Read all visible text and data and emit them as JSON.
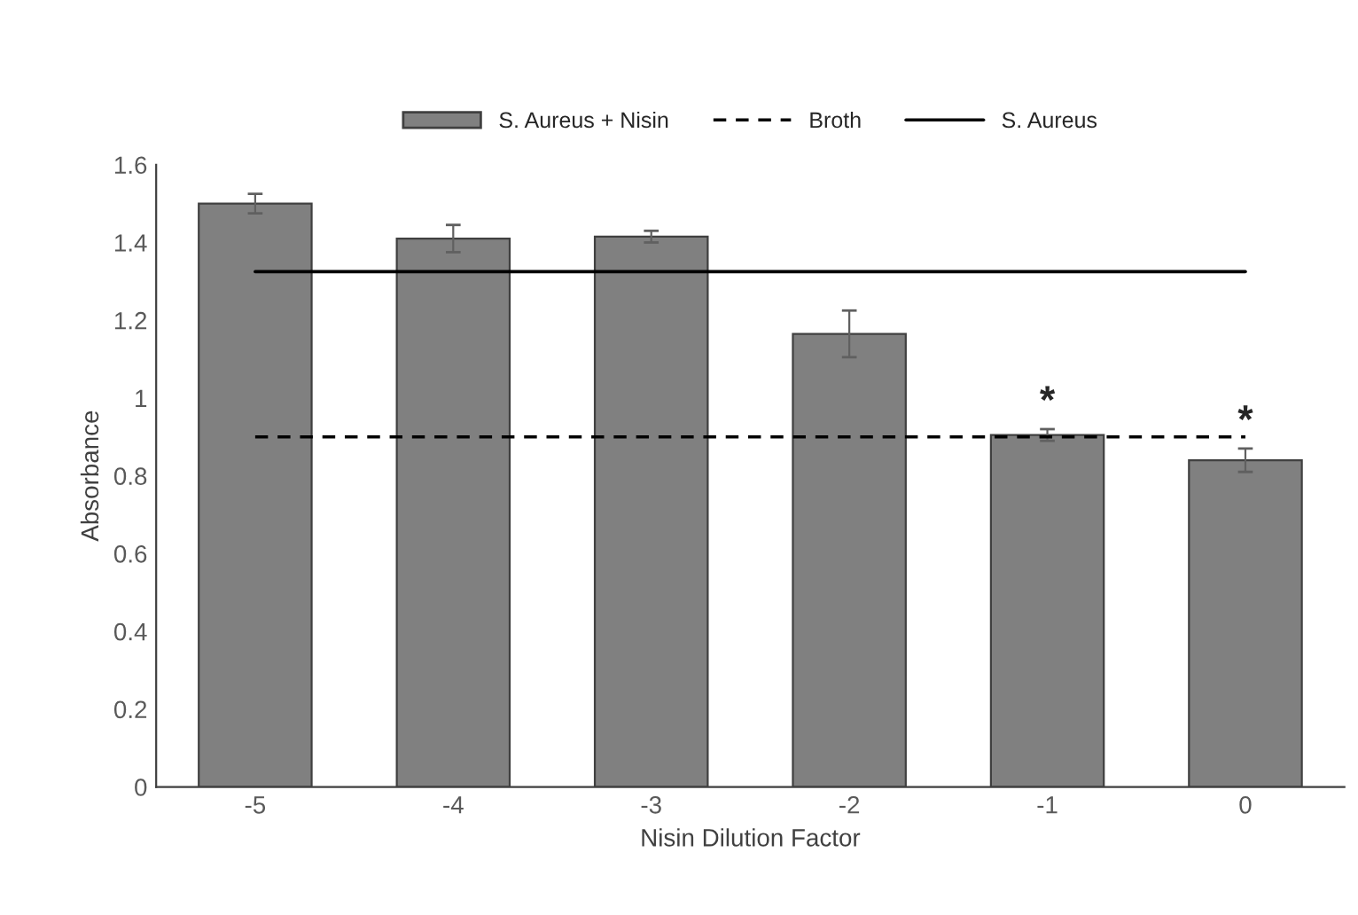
{
  "chart_data": {
    "type": "bar",
    "xlabel": "Nisin Dilution Factor",
    "ylabel": "Absorbance",
    "categories": [
      "-5",
      "-4",
      "-3",
      "-2",
      "-1",
      "0"
    ],
    "series": [
      {
        "name": "S. Aureus + Nisin",
        "color": "#808080",
        "values": [
          1.5,
          1.41,
          1.415,
          1.165,
          0.905,
          0.84
        ],
        "errors": [
          0.025,
          0.035,
          0.015,
          0.06,
          0.015,
          0.03
        ]
      },
      {
        "name": "Broth",
        "type": "line",
        "line_style": "dashed",
        "color": "#000000",
        "values": [
          0.9,
          0.9,
          0.9,
          0.9,
          0.9,
          0.9
        ]
      },
      {
        "name": "S. Aureus",
        "type": "line",
        "line_style": "solid",
        "color": "#000000",
        "values": [
          1.325,
          1.325,
          1.325,
          1.325,
          1.325,
          1.325
        ]
      }
    ],
    "annotations": [
      {
        "text": "*",
        "x": "-1",
        "y": 0.94
      },
      {
        "text": "*",
        "x": "0",
        "y": 0.89
      }
    ],
    "ylim": [
      0,
      1.6
    ],
    "yticks": [
      0,
      0.2,
      0.4,
      0.6,
      0.8,
      1,
      1.2,
      1.4,
      1.6
    ],
    "grid": false,
    "legend": "top"
  }
}
